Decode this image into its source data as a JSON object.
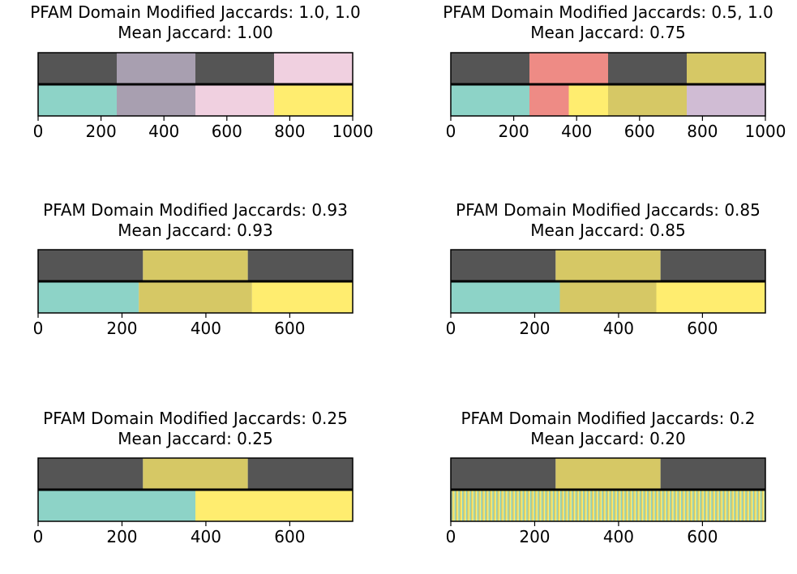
{
  "colors": {
    "dark": "#555555",
    "teal": "#8dd3c7",
    "mauve": "#a89fb0",
    "pink": "#f0d0e0",
    "yellow": "#ffed6f",
    "olive": "#d6c865",
    "salmon": "#ee8b85",
    "lilac": "#d0bcd4"
  },
  "chart_data": [
    {
      "type": "bar",
      "title_line1": "PFAM Domain Modified Jaccards: 1.0, 1.0",
      "title_line2": "Mean Jaccard: 1.00",
      "xlim": [
        0,
        1000
      ],
      "xticks": [
        "0",
        "200",
        "400",
        "600",
        "800",
        "1000"
      ],
      "tracks": [
        {
          "segments": [
            {
              "start": 0,
              "end": 250,
              "color": "dark"
            },
            {
              "start": 250,
              "end": 500,
              "color": "mauve"
            },
            {
              "start": 500,
              "end": 750,
              "color": "dark"
            },
            {
              "start": 750,
              "end": 1000,
              "color": "pink"
            }
          ]
        },
        {
          "segments": [
            {
              "start": 0,
              "end": 250,
              "color": "teal"
            },
            {
              "start": 250,
              "end": 500,
              "color": "mauve"
            },
            {
              "start": 500,
              "end": 750,
              "color": "pink"
            },
            {
              "start": 750,
              "end": 1000,
              "color": "yellow"
            }
          ]
        }
      ]
    },
    {
      "type": "bar",
      "title_line1": "PFAM Domain Modified Jaccards: 0.5, 1.0",
      "title_line2": "Mean Jaccard: 0.75",
      "xlim": [
        0,
        1000
      ],
      "xticks": [
        "0",
        "200",
        "400",
        "600",
        "800",
        "1000"
      ],
      "tracks": [
        {
          "segments": [
            {
              "start": 0,
              "end": 250,
              "color": "dark"
            },
            {
              "start": 250,
              "end": 500,
              "color": "salmon"
            },
            {
              "start": 500,
              "end": 750,
              "color": "dark"
            },
            {
              "start": 750,
              "end": 1000,
              "color": "olive"
            }
          ]
        },
        {
          "segments": [
            {
              "start": 0,
              "end": 250,
              "color": "teal"
            },
            {
              "start": 250,
              "end": 375,
              "color": "salmon"
            },
            {
              "start": 375,
              "end": 500,
              "color": "yellow"
            },
            {
              "start": 500,
              "end": 750,
              "color": "olive"
            },
            {
              "start": 750,
              "end": 1000,
              "color": "lilac"
            }
          ]
        }
      ]
    },
    {
      "type": "bar",
      "title_line1": "PFAM Domain Modified Jaccards: 0.93",
      "title_line2": "Mean Jaccard: 0.93",
      "xlim": [
        0,
        750
      ],
      "xticks": [
        "0",
        "200",
        "400",
        "600"
      ],
      "tracks": [
        {
          "segments": [
            {
              "start": 0,
              "end": 250,
              "color": "dark"
            },
            {
              "start": 250,
              "end": 500,
              "color": "olive"
            },
            {
              "start": 500,
              "end": 750,
              "color": "dark"
            }
          ]
        },
        {
          "segments": [
            {
              "start": 0,
              "end": 240,
              "color": "teal"
            },
            {
              "start": 240,
              "end": 510,
              "color": "olive"
            },
            {
              "start": 510,
              "end": 750,
              "color": "yellow"
            }
          ]
        }
      ]
    },
    {
      "type": "bar",
      "title_line1": "PFAM Domain Modified Jaccards: 0.85",
      "title_line2": "Mean Jaccard: 0.85",
      "xlim": [
        0,
        750
      ],
      "xticks": [
        "0",
        "200",
        "400",
        "600"
      ],
      "tracks": [
        {
          "segments": [
            {
              "start": 0,
              "end": 250,
              "color": "dark"
            },
            {
              "start": 250,
              "end": 500,
              "color": "olive"
            },
            {
              "start": 500,
              "end": 750,
              "color": "dark"
            }
          ]
        },
        {
          "segments": [
            {
              "start": 0,
              "end": 260,
              "color": "teal"
            },
            {
              "start": 260,
              "end": 490,
              "color": "olive"
            },
            {
              "start": 490,
              "end": 750,
              "color": "yellow"
            }
          ]
        }
      ]
    },
    {
      "type": "bar",
      "title_line1": "PFAM Domain Modified Jaccards: 0.25",
      "title_line2": "Mean Jaccard: 0.25",
      "xlim": [
        0,
        750
      ],
      "xticks": [
        "0",
        "200",
        "400",
        "600"
      ],
      "tracks": [
        {
          "segments": [
            {
              "start": 0,
              "end": 250,
              "color": "dark"
            },
            {
              "start": 250,
              "end": 500,
              "color": "olive"
            },
            {
              "start": 500,
              "end": 750,
              "color": "dark"
            }
          ]
        },
        {
          "segments": [
            {
              "start": 0,
              "end": 375,
              "color": "teal"
            },
            {
              "start": 375,
              "end": 750,
              "color": "yellow"
            }
          ]
        }
      ]
    },
    {
      "type": "bar",
      "title_line1": "PFAM Domain Modified Jaccards: 0.2",
      "title_line2": "Mean Jaccard: 0.20",
      "xlim": [
        0,
        750
      ],
      "xticks": [
        "0",
        "200",
        "400",
        "600"
      ],
      "tracks": [
        {
          "segments": [
            {
              "start": 0,
              "end": 250,
              "color": "dark"
            },
            {
              "start": 250,
              "end": 500,
              "color": "olive"
            },
            {
              "start": 500,
              "end": 750,
              "color": "dark"
            }
          ]
        },
        {
          "stripes": {
            "start": 0,
            "end": 750,
            "colors": [
              "teal",
              "yellow",
              "olive"
            ],
            "count": 250
          }
        }
      ]
    }
  ]
}
